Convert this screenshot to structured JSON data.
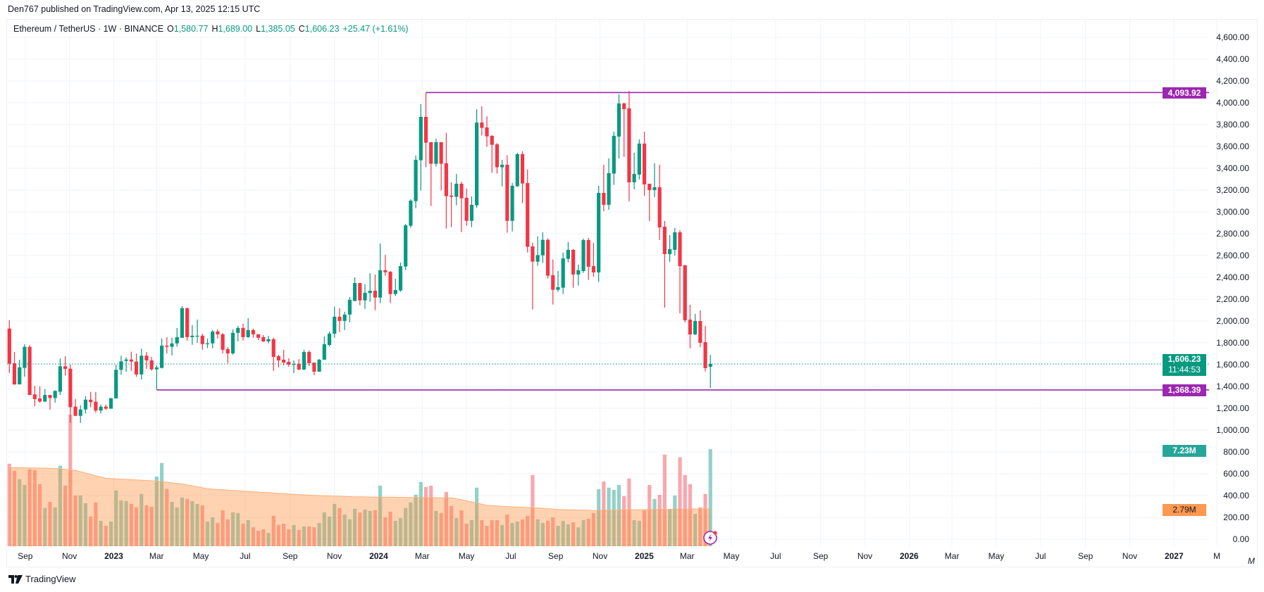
{
  "header": {
    "published": "Den767 published on TradingView.com, Apr 13, 2025 12:15 UTC"
  },
  "legend": {
    "symbol": "Ethereum / TetherUS · 1W · BINANCE",
    "o_label": "O",
    "o": "1,580.77",
    "h_label": "H",
    "h": "1,689.00",
    "l_label": "L",
    "l": "1,385.05",
    "c_label": "C",
    "c": "1,606.23",
    "change": "+25.47 (+1.61%)"
  },
  "badges": {
    "resistance": "4,093.92",
    "last_price": "1,606.23",
    "countdown": "11:44:53",
    "support": "1,368.39",
    "volume": "7.23M",
    "volume_ma": "2.79M"
  },
  "volume_unit_label": "M",
  "footer": {
    "brand": "TradingView"
  },
  "colors": {
    "up": "#089981",
    "down": "#F23645",
    "level_line": "#9C27B0",
    "volume_badge": "#26A69A",
    "volume_ma": "#FF9850",
    "grid": "#F0F3FA"
  },
  "chart_data": {
    "type": "candlestick",
    "symbol": "Ethereum / TetherUS",
    "interval": "1W",
    "ylim": [
      0,
      4600
    ],
    "grid": true,
    "y_ticks": [
      "0.00",
      "200.00",
      "400.00",
      "600.00",
      "800.00",
      "1,000.00",
      "1,200.00",
      "1,400.00",
      "1,600.00",
      "1,800.00",
      "2,000.00",
      "2,200.00",
      "2,400.00",
      "2,600.00",
      "2,800.00",
      "3,000.00",
      "3,200.00",
      "3,400.00",
      "3,600.00",
      "3,800.00",
      "4,000.00",
      "4,200.00",
      "4,400.00",
      "4,600.00"
    ],
    "x_ticks": [
      "Sep",
      "Nov",
      "2023",
      "Mar",
      "May",
      "Jul",
      "Sep",
      "Nov",
      "2024",
      "Mar",
      "May",
      "Jul",
      "Sep",
      "Nov",
      "2025",
      "Mar",
      "May",
      "Jul",
      "Sep",
      "Nov",
      "2026",
      "Mar",
      "May",
      "Jul",
      "Sep",
      "Nov",
      "2027",
      "M"
    ],
    "horizontal_levels": [
      4093.92,
      1368.39
    ],
    "last_price": 1606.23,
    "ohlc": [
      [
        1931,
        2006,
        1523,
        1609
      ],
      [
        1613,
        1717,
        1415,
        1419
      ],
      [
        1419,
        1645,
        1419,
        1576
      ],
      [
        1570,
        1787,
        1490,
        1763
      ],
      [
        1763,
        1780,
        1322,
        1322
      ],
      [
        1327,
        1406,
        1219,
        1284
      ],
      [
        1290,
        1400,
        1251,
        1262
      ],
      [
        1262,
        1378,
        1256,
        1322
      ],
      [
        1322,
        1322,
        1187,
        1294
      ],
      [
        1294,
        1366,
        1251,
        1359
      ],
      [
        1352,
        1656,
        1322,
        1585
      ],
      [
        1585,
        1677,
        1499,
        1561
      ],
      [
        1563,
        1600,
        1066,
        1210
      ],
      [
        1215,
        1286,
        1127,
        1131
      ],
      [
        1131,
        1228,
        1066,
        1189
      ],
      [
        1189,
        1312,
        1153,
        1279
      ],
      [
        1279,
        1350,
        1210,
        1256
      ],
      [
        1260,
        1350,
        1159,
        1179
      ],
      [
        1179,
        1234,
        1153,
        1215
      ],
      [
        1215,
        1234,
        1185,
        1196
      ],
      [
        1196,
        1293,
        1196,
        1293
      ],
      [
        1290,
        1597,
        1290,
        1552
      ],
      [
        1552,
        1682,
        1507,
        1630
      ],
      [
        1634,
        1667,
        1535,
        1647
      ],
      [
        1647,
        1719,
        1542,
        1628
      ],
      [
        1628,
        1701,
        1488,
        1510
      ],
      [
        1510,
        1746,
        1463,
        1682
      ],
      [
        1682,
        1717,
        1561,
        1639
      ],
      [
        1639,
        1671,
        1544,
        1557
      ],
      [
        1557,
        1593,
        1368.39,
        1574
      ],
      [
        1570,
        1839,
        1565,
        1774
      ],
      [
        1774,
        1852,
        1703,
        1764
      ],
      [
        1764,
        1846,
        1684,
        1794
      ],
      [
        1794,
        1936,
        1764,
        1852
      ],
      [
        1846,
        2136,
        1846,
        2117
      ],
      [
        2117,
        2123,
        1820,
        1852
      ],
      [
        1852,
        1962,
        1782,
        1865
      ],
      [
        1863,
        2013,
        1800,
        1865
      ],
      [
        1865,
        1884,
        1736,
        1788
      ],
      [
        1791,
        1839,
        1752,
        1795
      ],
      [
        1795,
        1917,
        1749,
        1904
      ],
      [
        1904,
        1923,
        1839,
        1878
      ],
      [
        1878,
        1891,
        1703,
        1736
      ],
      [
        1742,
        1762,
        1613,
        1703
      ],
      [
        1703,
        1923,
        1690,
        1891
      ],
      [
        1891,
        1955,
        1813,
        1936
      ],
      [
        1936,
        1975,
        1820,
        1852
      ],
      [
        1852,
        2026,
        1846,
        1917
      ],
      [
        1917,
        1930,
        1846,
        1878
      ],
      [
        1878,
        1878,
        1826,
        1846
      ],
      [
        1852,
        1871,
        1807,
        1813
      ],
      [
        1813,
        1865,
        1795,
        1833
      ],
      [
        1833,
        1846,
        1542,
        1671
      ],
      [
        1677,
        1690,
        1574,
        1639
      ],
      [
        1645,
        1736,
        1593,
        1619
      ],
      [
        1626,
        1658,
        1580,
        1600
      ],
      [
        1600,
        1639,
        1522,
        1606
      ],
      [
        1606,
        1650,
        1550,
        1555
      ],
      [
        1555,
        1736,
        1550,
        1716
      ],
      [
        1716,
        1729,
        1587,
        1613
      ],
      [
        1619,
        1619,
        1503,
        1535
      ],
      [
        1535,
        1652,
        1535,
        1645
      ],
      [
        1645,
        1858,
        1645,
        1787
      ],
      [
        1780,
        1904,
        1768,
        1884
      ],
      [
        1884,
        2130,
        1846,
        2039
      ],
      [
        2039,
        2117,
        1898,
        2001
      ],
      [
        2001,
        2085,
        1917,
        2059
      ],
      [
        2059,
        2220,
        1988,
        2194
      ],
      [
        2183,
        2400,
        2183,
        2348
      ],
      [
        2348,
        2348,
        2144,
        2189
      ],
      [
        2189,
        2336,
        2112,
        2258
      ],
      [
        2256,
        2439,
        2176,
        2277
      ],
      [
        2277,
        2426,
        2099,
        2215
      ],
      [
        2215,
        2710,
        2164,
        2465
      ],
      [
        2465,
        2606,
        2413,
        2447
      ],
      [
        2451,
        2458,
        2164,
        2247
      ],
      [
        2247,
        2387,
        2228,
        2284
      ],
      [
        2280,
        2535,
        2267,
        2503
      ],
      [
        2499,
        2890,
        2467,
        2877
      ],
      [
        2873,
        3116,
        2854,
        3103
      ],
      [
        3099,
        3516,
        3034,
        3477
      ],
      [
        3473,
        3987,
        3196,
        3871
      ],
      [
        3871,
        4093.92,
        3409,
        3634
      ],
      [
        3639,
        3639,
        3054,
        3441
      ],
      [
        3441,
        3671,
        3415,
        3639
      ],
      [
        3639,
        3639,
        3196,
        3441
      ],
      [
        3445,
        3723,
        2847,
        3144
      ],
      [
        3150,
        3271,
        2860,
        3138
      ],
      [
        3138,
        3348,
        3060,
        3258
      ],
      [
        3258,
        3277,
        2815,
        3125
      ],
      [
        3129,
        3213,
        2873,
        2918
      ],
      [
        2918,
        3142,
        2860,
        3065
      ],
      [
        3060,
        3942,
        3039,
        3819
      ],
      [
        3819,
        3968,
        3699,
        3770
      ],
      [
        3774,
        3877,
        3596,
        3692
      ],
      [
        3697,
        3703,
        3357,
        3615
      ],
      [
        3619,
        3632,
        3351,
        3409
      ],
      [
        3409,
        3477,
        3234,
        3432
      ],
      [
        3432,
        3518,
        2809,
        2918
      ],
      [
        2918,
        3265,
        2821,
        3239
      ],
      [
        3235,
        3542,
        3228,
        3529
      ],
      [
        3529,
        3555,
        3080,
        3260
      ],
      [
        3264,
        3389,
        2628,
        2680
      ],
      [
        2684,
        2718,
        2105,
        2544
      ],
      [
        2544,
        2776,
        2505,
        2604
      ],
      [
        2602,
        2813,
        2531,
        2744
      ],
      [
        2744,
        2757,
        2389,
        2415
      ],
      [
        2419,
        2564,
        2151,
        2286
      ],
      [
        2286,
        2458,
        2267,
        2310
      ],
      [
        2305,
        2628,
        2247,
        2574
      ],
      [
        2570,
        2723,
        2538,
        2652
      ],
      [
        2652,
        2658,
        2305,
        2426
      ],
      [
        2426,
        2516,
        2325,
        2465
      ],
      [
        2458,
        2755,
        2441,
        2742
      ],
      [
        2742,
        2761,
        2376,
        2497
      ],
      [
        2503,
        2716,
        2406,
        2445
      ],
      [
        2445,
        3239,
        2357,
        3174
      ],
      [
        3174,
        3432,
        3006,
        3065
      ],
      [
        3065,
        3490,
        3019,
        3355
      ],
      [
        3351,
        3736,
        3247,
        3697
      ],
      [
        3690,
        4077,
        3490,
        3994
      ],
      [
        3994,
        4000,
        3503,
        3942
      ],
      [
        3949,
        4107,
        3097,
        3271
      ],
      [
        3271,
        3542,
        3206,
        3348
      ],
      [
        3342,
        3665,
        3297,
        3626
      ],
      [
        3626,
        3735,
        3148,
        3252
      ],
      [
        3258,
        3258,
        2916,
        3200
      ],
      [
        3200,
        3445,
        3135,
        3226
      ],
      [
        3226,
        3432,
        2742,
        2858
      ],
      [
        2864,
        2916,
        2123,
        2613
      ],
      [
        2613,
        2787,
        2542,
        2658
      ],
      [
        2652,
        2852,
        2600,
        2813
      ],
      [
        2813,
        2832,
        2071,
        2503
      ],
      [
        2510,
        2516,
        1987,
        2007
      ],
      [
        2013,
        2149,
        1749,
        1877
      ],
      [
        1877,
        2065,
        1871,
        2000
      ],
      [
        2000,
        2097,
        1761,
        1800
      ],
      [
        1806,
        1955,
        1536,
        1568
      ],
      [
        1580.77,
        1689,
        1385.05,
        1606.23
      ]
    ],
    "volume_millions": [
      6.14,
      5.62,
      4.99,
      4.56,
      5.72,
      5.67,
      4.62,
      2.84,
      3.3,
      2.89,
      5.99,
      4.51,
      9.79,
      3.78,
      3.78,
      3.2,
      2.21,
      3.26,
      1.89,
      1.52,
      1.84,
      4.15,
      3.41,
      3.36,
      3.15,
      2.89,
      3.89,
      3.04,
      2.94,
      5.19,
      6.19,
      4.25,
      3.3,
      2.89,
      3.62,
      3.52,
      3.36,
      3.15,
      3.04,
      1.84,
      2.15,
      1.73,
      2.67,
      2.0,
      2.52,
      2.47,
      1.68,
      1.94,
      1.41,
      1.15,
      1.26,
      1.0,
      2.26,
      1.58,
      1.68,
      1.26,
      1.58,
      1.21,
      1.47,
      1.47,
      1.41,
      1.73,
      2.52,
      2.21,
      3.15,
      2.84,
      2.36,
      2.0,
      2.78,
      2.52,
      2.73,
      2.63,
      2.67,
      4.51,
      2.15,
      2.57,
      1.89,
      2.1,
      2.84,
      3.26,
      3.83,
      4.78,
      4.41,
      4.51,
      2.63,
      2.47,
      4.04,
      2.99,
      2.1,
      2.67,
      1.68,
      1.94,
      4.36,
      1.94,
      1.52,
      1.94,
      1.94,
      1.58,
      2.36,
      1.73,
      1.84,
      2.0,
      2.26,
      5.3,
      2.0,
      1.73,
      1.89,
      2.15,
      1.52,
      1.89,
      1.63,
      1.78,
      1.41,
      1.94,
      2.04,
      2.47,
      4.25,
      4.82,
      4.36,
      4.19,
      4.56,
      3.73,
      5.04,
      1.94,
      1.89,
      2.67,
      4.56,
      3.52,
      3.83,
      6.82,
      2.73,
      3.78,
      6.62,
      5.3,
      4.62,
      2.41,
      2.89,
      3.89,
      7.23
    ],
    "volume_ma_millions": [
      [
        1,
        5.86
      ],
      [
        10,
        5.79
      ],
      [
        14,
        5.64
      ],
      [
        20,
        5.06
      ],
      [
        30,
        4.85
      ],
      [
        35,
        4.64
      ],
      [
        40,
        4.28
      ],
      [
        50,
        4.03
      ],
      [
        60,
        3.8
      ],
      [
        69,
        3.68
      ],
      [
        80,
        3.63
      ],
      [
        88,
        3.6
      ],
      [
        90,
        3.46
      ],
      [
        95,
        3.05
      ],
      [
        100,
        2.93
      ],
      [
        105,
        2.85
      ],
      [
        110,
        2.72
      ],
      [
        116,
        2.66
      ],
      [
        125,
        2.72
      ],
      [
        139,
        2.79
      ]
    ]
  }
}
